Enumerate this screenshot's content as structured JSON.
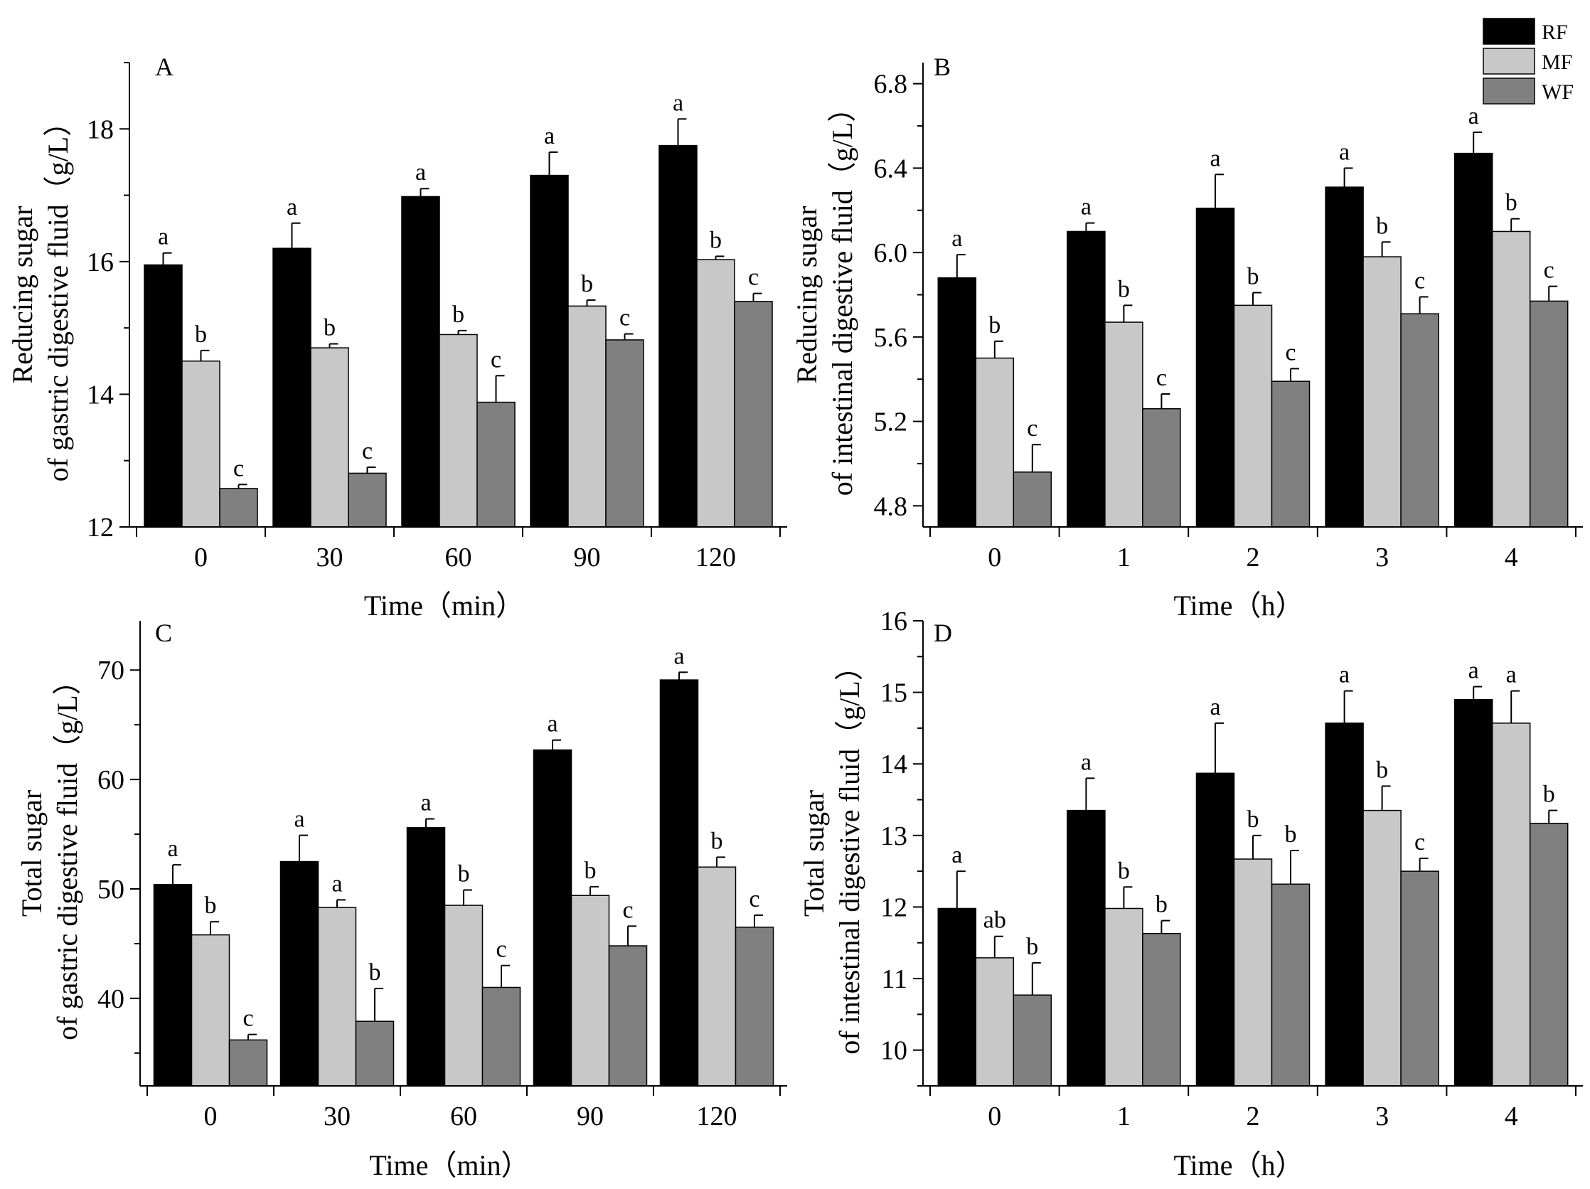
{
  "legend": {
    "items": [
      {
        "label": "RF",
        "color": "#000000"
      },
      {
        "label": "MF",
        "color": "#c8c8c8"
      },
      {
        "label": "WF",
        "color": "#808080"
      }
    ]
  },
  "chart_data": [
    {
      "panel": "A",
      "type": "bar",
      "categories": [
        "0",
        "30",
        "60",
        "90",
        "120"
      ],
      "xlabel": "Time（min）",
      "ylabel": [
        "Reducing sugar",
        "of gastric digestive fluid（g/L）"
      ],
      "ylim": [
        12,
        19
      ],
      "yticks": [
        12,
        14,
        16,
        18
      ],
      "ytick_labels": [
        "12",
        "14",
        "16",
        "18"
      ],
      "series": [
        {
          "name": "RF",
          "values": [
            15.95,
            16.2,
            16.98,
            17.3,
            17.75
          ],
          "errors": [
            0.18,
            0.38,
            0.12,
            0.35,
            0.4
          ],
          "sig": [
            "a",
            "a",
            "a",
            "a",
            "a"
          ]
        },
        {
          "name": "MF",
          "values": [
            14.5,
            14.7,
            14.9,
            15.33,
            16.03
          ],
          "errors": [
            0.16,
            0.06,
            0.06,
            0.09,
            0.05
          ],
          "sig": [
            "b",
            "b",
            "b",
            "b",
            "b"
          ]
        },
        {
          "name": "WF",
          "values": [
            12.58,
            12.81,
            13.88,
            14.82,
            15.4
          ],
          "errors": [
            0.06,
            0.09,
            0.4,
            0.09,
            0.12
          ],
          "sig": [
            "c",
            "c",
            "c",
            "c",
            "c"
          ]
        }
      ]
    },
    {
      "panel": "B",
      "type": "bar",
      "categories": [
        "0",
        "1",
        "2",
        "3",
        "4"
      ],
      "xlabel": "Time（h）",
      "ylabel": [
        "Reducing sugar",
        "of intestinal digestive fluid（g/L）"
      ],
      "ylim": [
        4.7,
        6.9
      ],
      "yticks": [
        4.8,
        5.2,
        5.6,
        6.0,
        6.4,
        6.8
      ],
      "ytick_labels": [
        "4.8",
        "5.2",
        "5.6",
        "6.0",
        "6.4",
        "6.8"
      ],
      "series": [
        {
          "name": "RF",
          "values": [
            5.88,
            6.1,
            6.21,
            6.31,
            6.47
          ],
          "errors": [
            0.11,
            0.04,
            0.16,
            0.09,
            0.1
          ],
          "sig": [
            "a",
            "a",
            "a",
            "a",
            "a"
          ]
        },
        {
          "name": "MF",
          "values": [
            5.5,
            5.67,
            5.75,
            5.98,
            6.1
          ],
          "errors": [
            0.08,
            0.08,
            0.06,
            0.07,
            0.06
          ],
          "sig": [
            "b",
            "b",
            "b",
            "b",
            "b"
          ]
        },
        {
          "name": "WF",
          "values": [
            4.96,
            5.26,
            5.39,
            5.71,
            5.77
          ],
          "errors": [
            0.13,
            0.07,
            0.06,
            0.08,
            0.07
          ],
          "sig": [
            "c",
            "c",
            "c",
            "c",
            "c"
          ]
        }
      ]
    },
    {
      "panel": "C",
      "type": "bar",
      "categories": [
        "0",
        "30",
        "60",
        "90",
        "120"
      ],
      "xlabel": "Time（min）",
      "ylabel": [
        "Total sugar",
        "of gastric digestive fluid（g/L）"
      ],
      "ylim": [
        32,
        74.5
      ],
      "yticks": [
        40,
        50,
        60,
        70
      ],
      "ytick_labels": [
        "40",
        "50",
        "60",
        "70"
      ],
      "series": [
        {
          "name": "RF",
          "values": [
            50.4,
            52.5,
            55.6,
            62.7,
            69.1
          ],
          "errors": [
            1.8,
            2.4,
            0.8,
            0.9,
            0.7
          ],
          "sig": [
            "a",
            "a",
            "a",
            "a",
            "a"
          ]
        },
        {
          "name": "MF",
          "values": [
            45.8,
            48.3,
            48.5,
            49.4,
            52.0
          ],
          "errors": [
            1.2,
            0.7,
            1.4,
            0.8,
            0.9
          ],
          "sig": [
            "b",
            "a",
            "b",
            "b",
            "b"
          ]
        },
        {
          "name": "WF",
          "values": [
            36.2,
            37.9,
            41.0,
            44.8,
            46.5
          ],
          "errors": [
            0.5,
            3.0,
            2.0,
            1.8,
            1.1
          ],
          "sig": [
            "c",
            "b",
            "c",
            "c",
            "c"
          ]
        }
      ]
    },
    {
      "panel": "D",
      "type": "bar",
      "categories": [
        "0",
        "1",
        "2",
        "3",
        "4"
      ],
      "xlabel": "Time（h）",
      "ylabel": [
        "Total sugar",
        "of intestinal digestive fluid（g/L）"
      ],
      "ylim": [
        9.5,
        16
      ],
      "yticks": [
        10,
        11,
        12,
        13,
        14,
        15,
        16
      ],
      "ytick_labels": [
        "10",
        "11",
        "12",
        "13",
        "14",
        "15",
        "16"
      ],
      "series": [
        {
          "name": "RF",
          "values": [
            11.98,
            13.35,
            13.87,
            14.57,
            14.9
          ],
          "errors": [
            0.52,
            0.45,
            0.7,
            0.45,
            0.18
          ],
          "sig": [
            "a",
            "a",
            "a",
            "a",
            "a"
          ]
        },
        {
          "name": "MF",
          "values": [
            11.29,
            11.98,
            12.67,
            13.35,
            14.57
          ],
          "errors": [
            0.3,
            0.3,
            0.33,
            0.34,
            0.45
          ],
          "sig": [
            "ab",
            "b",
            "b",
            "b",
            "a"
          ]
        },
        {
          "name": "WF",
          "values": [
            10.77,
            11.63,
            12.32,
            12.5,
            13.17
          ],
          "errors": [
            0.45,
            0.18,
            0.47,
            0.18,
            0.18
          ],
          "sig": [
            "b",
            "b",
            "b",
            "c",
            "b"
          ]
        }
      ]
    }
  ]
}
